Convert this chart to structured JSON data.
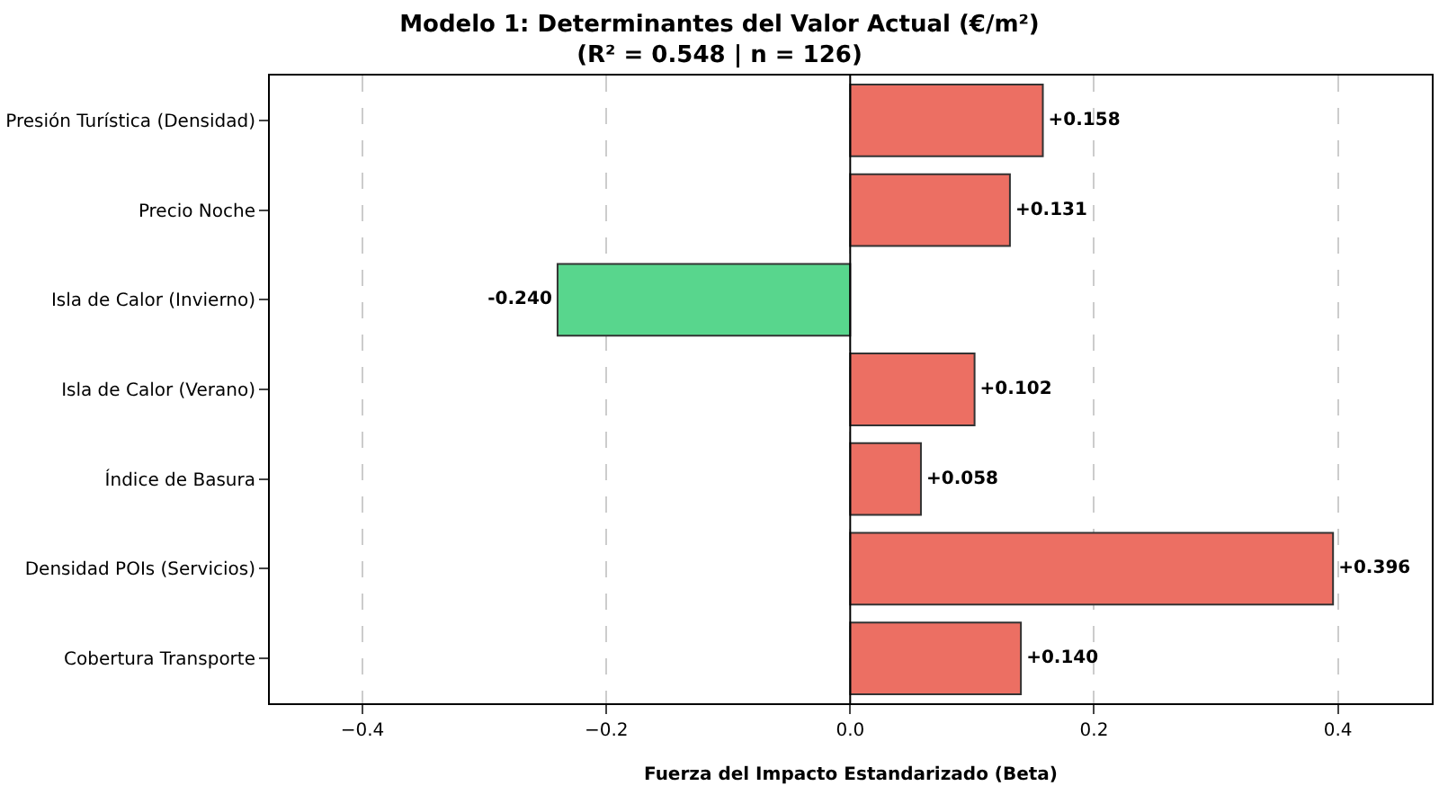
{
  "chart_data": {
    "type": "bar",
    "orientation": "horizontal",
    "title": "Modelo 1: Determinantes del Valor Actual (€/m²)\n(R² = 0.548 | n = 126)",
    "xlabel": "Fuerza del Impacto Estandarizado (Beta)",
    "categories": [
      "Presión Turística (Densidad)",
      "Precio Noche",
      "Isla de Calor (Invierno)",
      "Isla de Calor (Verano)",
      "Índice de Basura",
      "Densidad POIs (Servicios)",
      "Cobertura Transporte"
    ],
    "values": [
      0.158,
      0.131,
      -0.24,
      0.102,
      0.058,
      0.396,
      0.14
    ],
    "value_labels": [
      "+0.158",
      "+0.131",
      "-0.240",
      "+0.102",
      "+0.058",
      "+0.396",
      "+0.140"
    ],
    "colors": [
      "#ec6f63",
      "#ec6f63",
      "#58d68d",
      "#ec6f63",
      "#ec6f63",
      "#ec6f63",
      "#ec6f63"
    ],
    "xlim": [
      -0.476,
      0.477
    ],
    "xticks": [
      {
        "value": -0.4,
        "label": "−0.4"
      },
      {
        "value": -0.2,
        "label": "−0.2"
      },
      {
        "value": 0,
        "label": "0.0"
      },
      {
        "value": 0.2,
        "label": "0.2"
      },
      {
        "value": 0.4,
        "label": "0.4"
      }
    ],
    "ref_lines": [
      {
        "axis": "x",
        "value": 0,
        "color": "#000000",
        "line_style": "solid"
      }
    ],
    "grid": "x"
  }
}
